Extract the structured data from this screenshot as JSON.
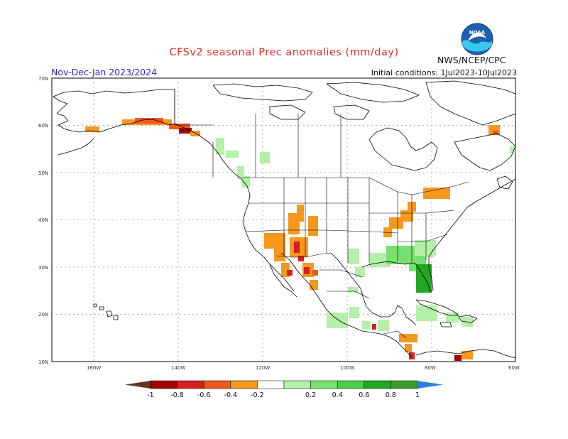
{
  "title": "CFSv2 seasonal Prec anomalies (mm/day)",
  "period": "Nov-Dec-Jan 2023/2024",
  "initial_conditions": "Initial conditions: 1Jul2023-10Jul2023",
  "agency": "NWS/NCEP/CPC",
  "logo_text": "NOAA",
  "lat_labels": [
    "70N",
    "60N",
    "50N",
    "40N",
    "30N",
    "20N",
    "10N"
  ],
  "lon_labels": [
    "160W",
    "140W",
    "120W",
    "100W",
    "80W",
    "60W"
  ],
  "colorbar": {
    "labels": [
      "-1",
      "-0.8",
      "-0.6",
      "-0.4",
      "-0.2",
      "0.2",
      "0.4",
      "0.6",
      "0.8",
      "1"
    ],
    "colors": [
      "#5c3a1e",
      "#a00000",
      "#d81f1f",
      "#f0591e",
      "#f4981e",
      "#ffffff",
      "#b4f0a8",
      "#78e070",
      "#48d048",
      "#20a820",
      "#3a9a2a",
      "#2b7fe0"
    ]
  },
  "anomaly_colors": {
    "dry_light": "#f4981e",
    "dry_medium": "#f0591e",
    "dry_strong": "#d81f1f",
    "dry_extreme": "#a00000",
    "wet_light": "#b4f0a8",
    "wet_medium": "#78e070",
    "wet_strong": "#20a820"
  }
}
